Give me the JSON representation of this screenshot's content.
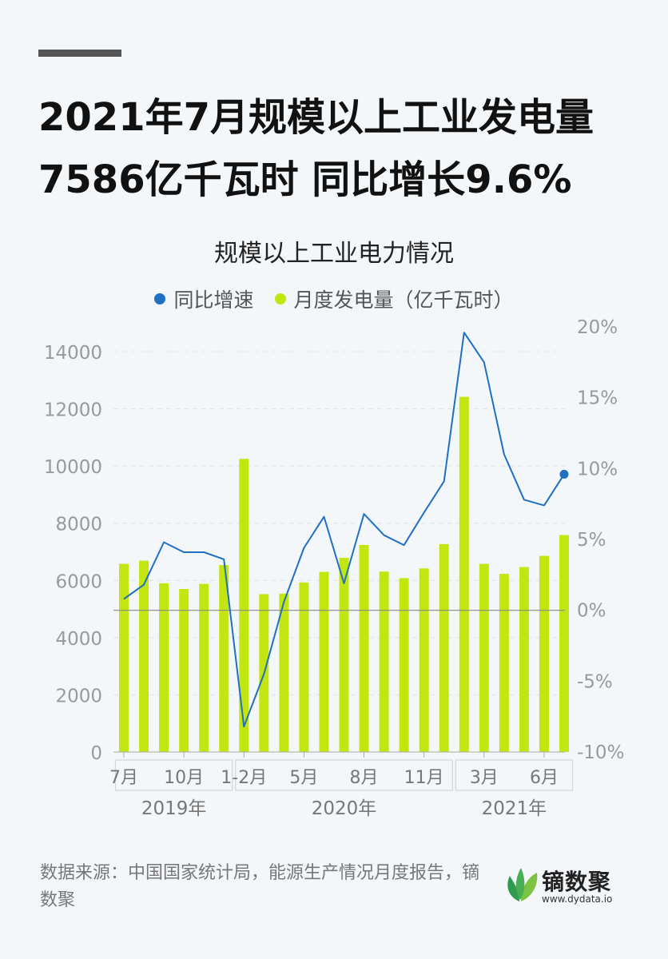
{
  "header": {
    "title_line1": "2021年7月规模以上工业发电量",
    "title_line2": "7586亿千瓦时 同比增长9.6%"
  },
  "colors": {
    "bar": "#c3e510",
    "line": "#1f6fc5",
    "dot": "#1f6fc5",
    "axis": "#888888"
  },
  "chart_data": {
    "type": "bar+line",
    "title": "规模以上工业电力情况",
    "legend": [
      {
        "name": "同比增速",
        "kind": "line",
        "color": "#1f6fc5"
      },
      {
        "name": "月度发电量（亿千瓦时）",
        "kind": "bar",
        "color": "#c3e510"
      }
    ],
    "legend_position": "top",
    "categories": [
      "2019-07",
      "2019-08",
      "2019-09",
      "2019-10",
      "2019-11",
      "2019-12",
      "2020-01/02",
      "2020-03",
      "2020-04",
      "2020-05",
      "2020-06",
      "2020-07",
      "2020-08",
      "2020-09",
      "2020-10",
      "2020-11",
      "2020-12",
      "2021-01/02",
      "2021-03",
      "2021-04",
      "2021-05",
      "2021-06",
      "2021-07"
    ],
    "series": [
      {
        "name": "月度发电量（亿千瓦时）",
        "type": "bar",
        "axis": "left",
        "values": [
          6580,
          6690,
          5900,
          5700,
          5880,
          6540,
          10250,
          5520,
          5540,
          5930,
          6300,
          6790,
          7240,
          6310,
          6080,
          6420,
          7270,
          12420,
          6580,
          6230,
          6470,
          6860,
          7586
        ]
      },
      {
        "name": "同比增速",
        "type": "line",
        "axis": "right",
        "values": [
          0.8,
          1.8,
          4.8,
          4.1,
          4.1,
          3.6,
          -8.2,
          -4.5,
          0.6,
          4.4,
          6.6,
          1.9,
          6.8,
          5.3,
          4.6,
          6.9,
          9.1,
          19.6,
          17.5,
          11.0,
          7.8,
          7.4,
          9.6
        ]
      }
    ],
    "y_left": {
      "min": 0,
      "max": 14000,
      "ticks": [
        "0",
        "2000",
        "4000",
        "6000",
        "8000",
        "10000",
        "12000",
        "14000"
      ]
    },
    "y_right": {
      "min": -10,
      "max": 20,
      "ticks": [
        "-10%",
        "-5%",
        "0%",
        "5%",
        "10%",
        "15%",
        "20%"
      ]
    },
    "x_groups": [
      {
        "year": "2019年",
        "labels": [
          {
            "text": "7月",
            "idx": 0
          },
          {
            "text": "10月",
            "idx": 3
          }
        ],
        "first": 0,
        "last": 5
      },
      {
        "year": "2020年",
        "labels": [
          {
            "text": "1-2月",
            "idx": 6
          },
          {
            "text": "5月",
            "idx": 9
          },
          {
            "text": "8月",
            "idx": 12
          },
          {
            "text": "11月",
            "idx": 15
          }
        ],
        "first": 6,
        "last": 16
      },
      {
        "year": "2021年",
        "labels": [
          {
            "text": "3月",
            "idx": 18
          },
          {
            "text": "6月",
            "idx": 21
          }
        ],
        "first": 17,
        "last": 22
      }
    ],
    "grid": true
  },
  "footer": {
    "source": "数据来源：中国国家统计局，能源生产情况月度报告，镝数聚"
  },
  "logo": {
    "name": "镝数聚",
    "url": "www.dydata.io"
  }
}
